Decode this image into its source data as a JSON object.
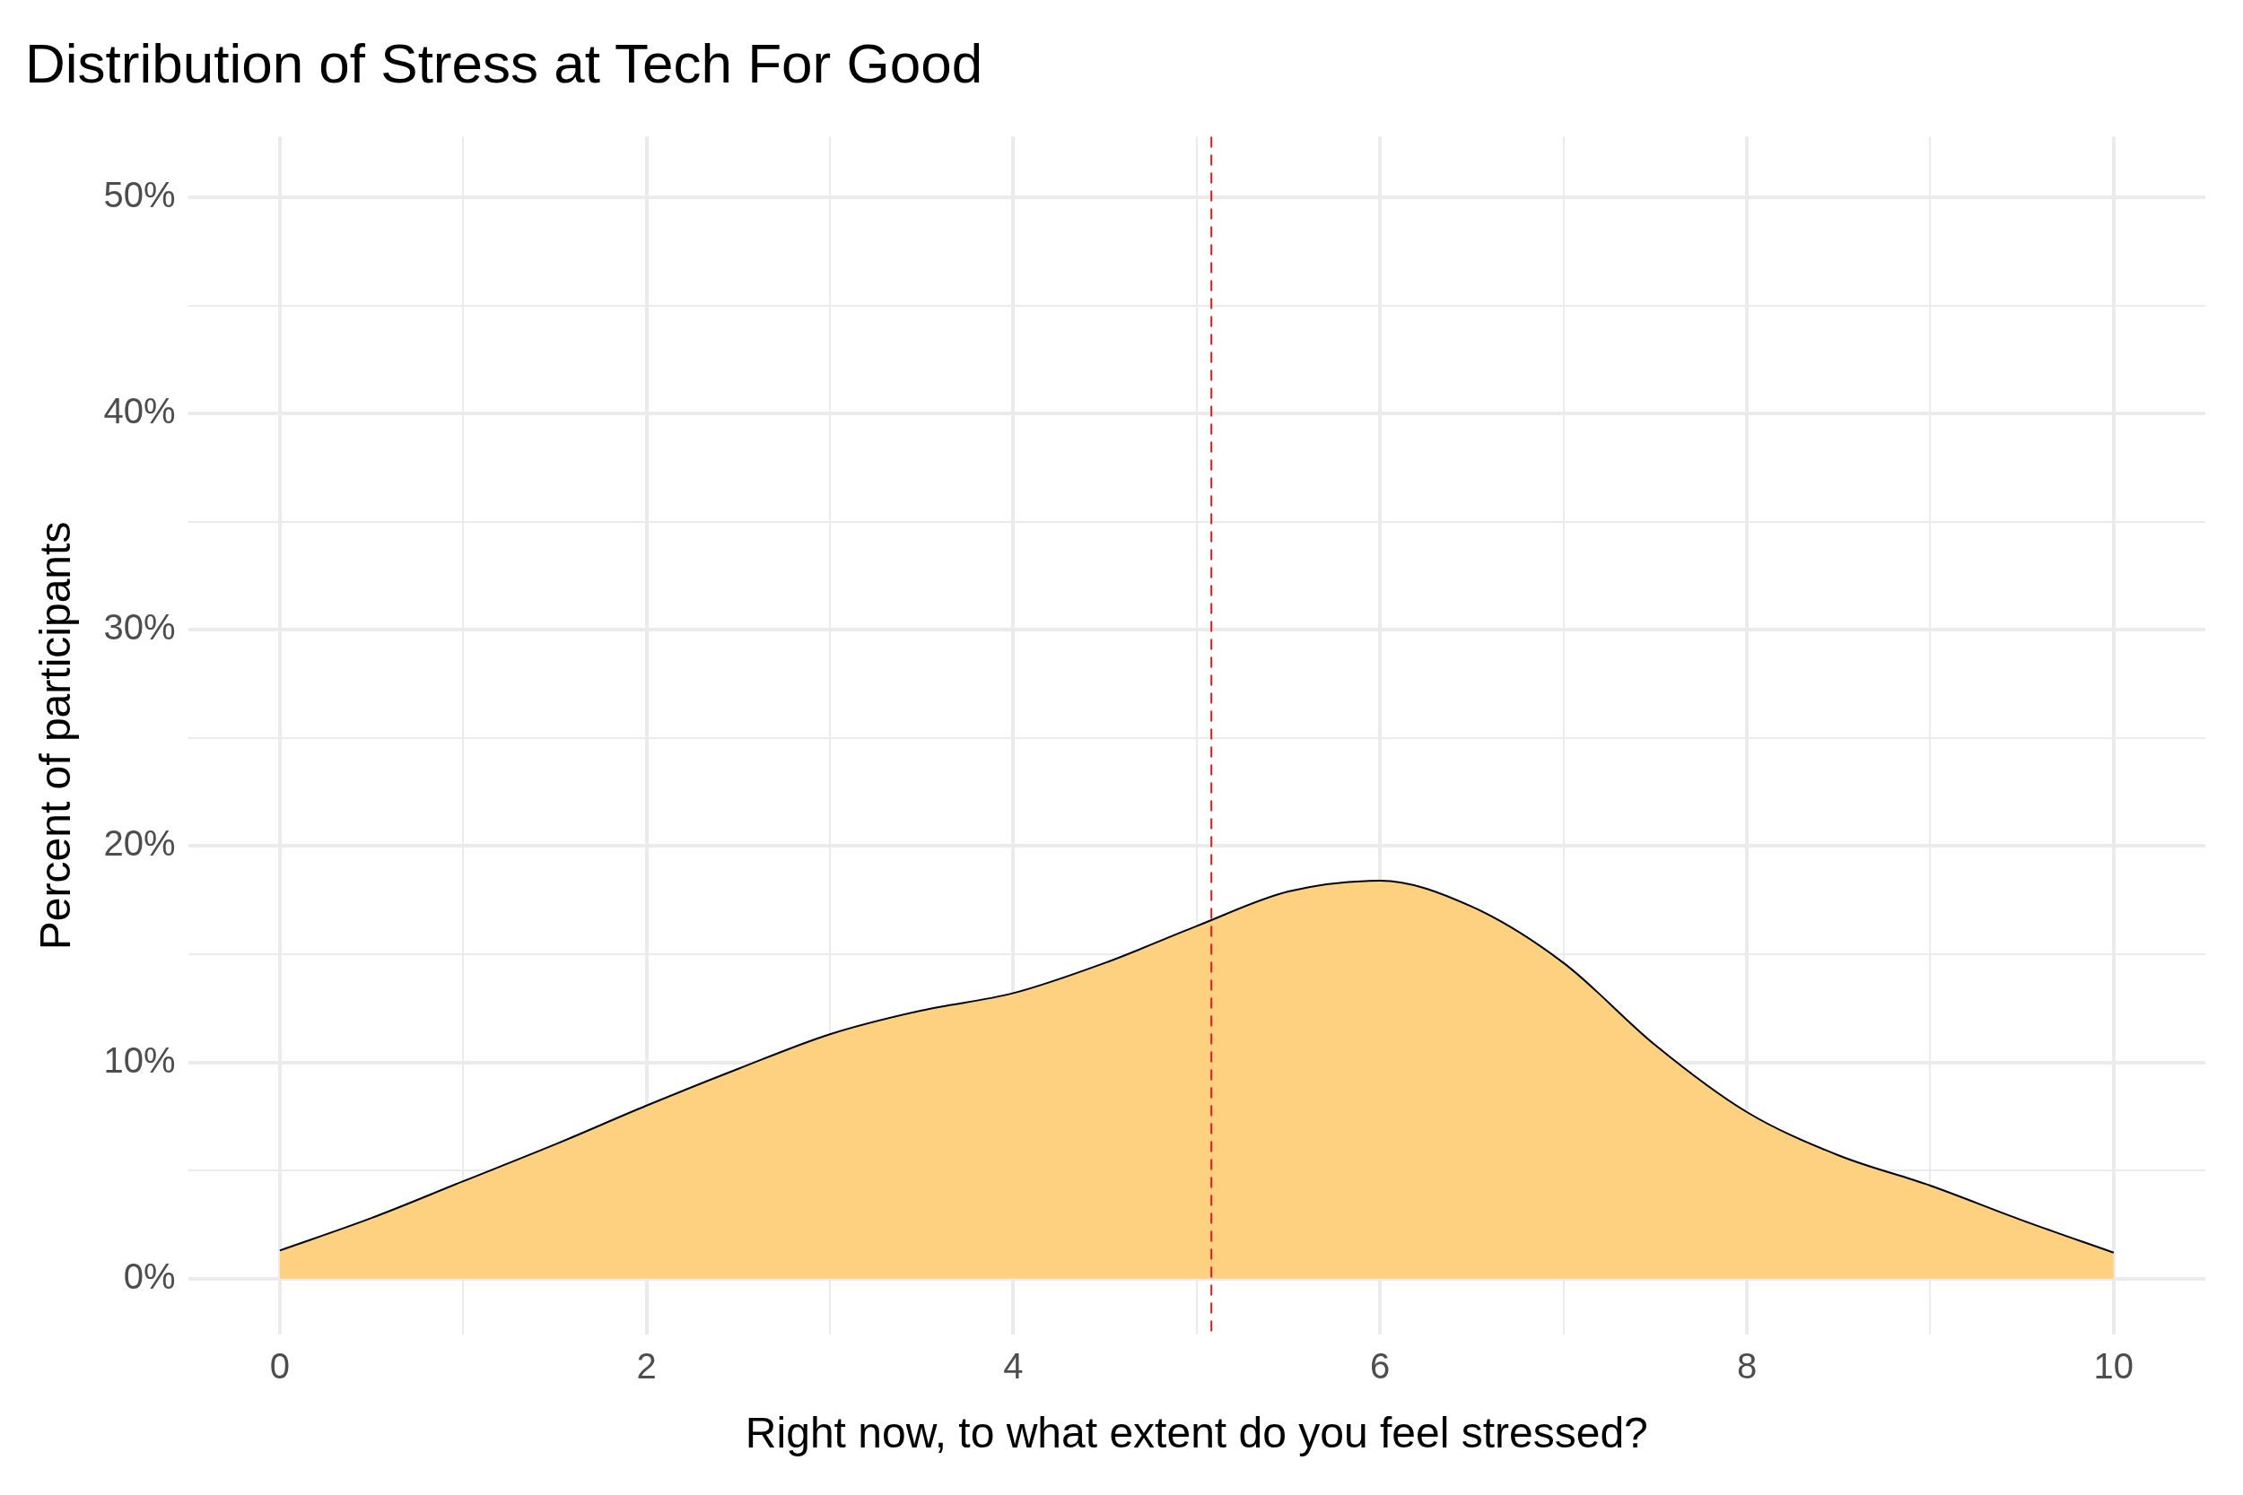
{
  "chart_data": {
    "type": "area",
    "title": "Distribution of Stress at Tech For Good",
    "xlabel": "Right now, to what extent do you feel stressed?",
    "ylabel": "Percent of participants",
    "x": [
      0,
      0.5,
      1,
      1.5,
      2,
      2.5,
      3,
      3.5,
      4,
      4.5,
      5,
      5.5,
      6,
      6.5,
      7,
      7.5,
      8,
      8.5,
      9,
      9.5,
      10
    ],
    "series": [
      {
        "color": "#fdd17f",
        "values": [
          1.3,
          2.8,
          4.5,
          6.2,
          8.0,
          9.7,
          11.3,
          12.4,
          13.2,
          14.6,
          16.3,
          17.9,
          18.4,
          17.2,
          14.6,
          10.8,
          7.7,
          5.7,
          4.3,
          2.7,
          1.2
        ]
      }
    ],
    "xlim": [
      -0.5,
      10.5
    ],
    "xticks": [
      0,
      {
        "value": 1,
        "label": null
      },
      2,
      {
        "value": 3,
        "label": null
      },
      4,
      {
        "value": 5,
        "label": null
      },
      6,
      {
        "value": 7,
        "label": null
      },
      8,
      {
        "value": 9,
        "label": null
      },
      10
    ],
    "ylim": [
      -2.6,
      52.8
    ],
    "yticks": [
      {
        "value": 0,
        "label": "0%"
      },
      {
        "value": 5,
        "label": null
      },
      {
        "value": 10,
        "label": "10%"
      },
      {
        "value": 15,
        "label": null
      },
      {
        "value": 20,
        "label": "20%"
      },
      {
        "value": 25,
        "label": null
      },
      {
        "value": 30,
        "label": "30%"
      },
      {
        "value": 35,
        "label": null
      },
      {
        "value": 40,
        "label": "40%"
      },
      {
        "value": 45,
        "label": null
      },
      {
        "value": 50,
        "label": "50%"
      }
    ],
    "grid": true,
    "ref_lines": [
      {
        "axis": "x",
        "value": 5.08,
        "color": "#e31a1c",
        "line_style": "dashed"
      }
    ]
  }
}
